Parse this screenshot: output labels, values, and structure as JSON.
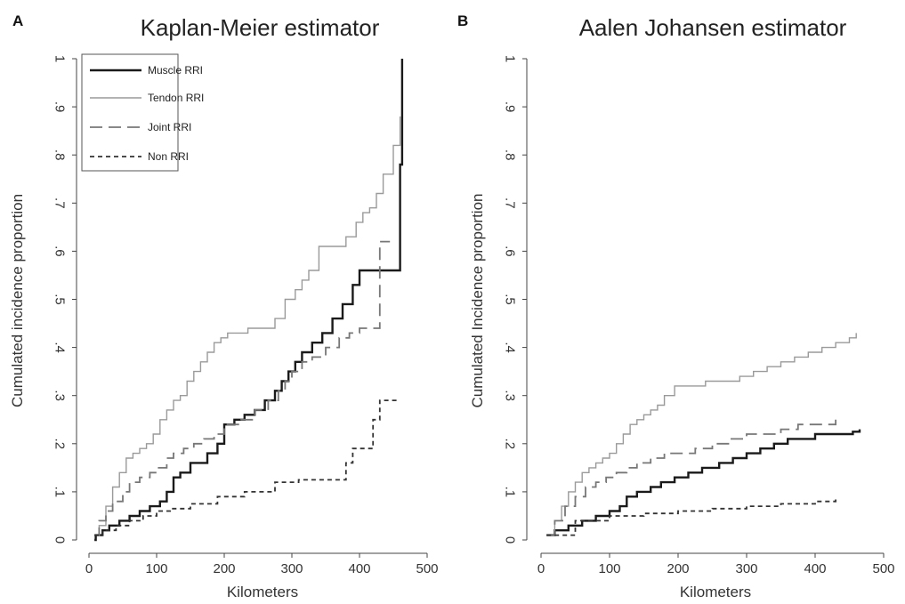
{
  "panels": [
    {
      "letter": "A",
      "title": "Kaplan-Meier estimator"
    },
    {
      "letter": "B",
      "title": "Aalen Johansen estimator"
    }
  ],
  "series_styles": [
    {
      "name": "Muscle RRI",
      "color": "#1a1a1a",
      "dash": "solid",
      "weight": "thick"
    },
    {
      "name": "Tendon RRI",
      "color": "#9a9a9a",
      "dash": "solid",
      "weight": "thin"
    },
    {
      "name": "Joint RRI",
      "color": "#777777",
      "dash": "long-dash",
      "weight": "medium"
    },
    {
      "name": "Non RRI",
      "color": "#333333",
      "dash": "short-dash",
      "weight": "medium"
    }
  ],
  "chart_data": [
    {
      "type": "line",
      "title": "Kaplan-Meier estimator",
      "xlabel": "Kilometers",
      "ylabel": "Cumulated incidence proportion",
      "xlim": [
        0,
        500
      ],
      "ylim": [
        0,
        1
      ],
      "xticks": [
        "0",
        "100",
        "200",
        "300",
        "400",
        "500"
      ],
      "yticks": [
        "0",
        ".1",
        ".2",
        ".3",
        ".4",
        ".5",
        ".6",
        ".7",
        ".8",
        ".9",
        "1"
      ],
      "legend": [
        "Muscle RRI",
        "Tendon RRI",
        "Joint RRI",
        "Non RRI"
      ],
      "legend_position": "top-left",
      "series": [
        {
          "name": "Muscle RRI",
          "x": [
            8,
            10,
            20,
            30,
            45,
            60,
            75,
            90,
            105,
            115,
            125,
            135,
            150,
            175,
            190,
            200,
            215,
            230,
            245,
            260,
            275,
            285,
            295,
            305,
            315,
            330,
            345,
            360,
            375,
            390,
            400,
            415,
            435,
            455,
            460,
            463
          ],
          "y": [
            0.0,
            0.01,
            0.02,
            0.03,
            0.04,
            0.05,
            0.06,
            0.07,
            0.08,
            0.1,
            0.13,
            0.14,
            0.16,
            0.18,
            0.2,
            0.24,
            0.25,
            0.26,
            0.27,
            0.29,
            0.31,
            0.33,
            0.35,
            0.37,
            0.39,
            0.41,
            0.43,
            0.46,
            0.49,
            0.53,
            0.56,
            0.56,
            0.56,
            0.56,
            0.78,
            1.0
          ]
        },
        {
          "name": "Tendon RRI",
          "x": [
            8,
            15,
            25,
            35,
            45,
            55,
            65,
            75,
            85,
            95,
            105,
            115,
            125,
            135,
            145,
            155,
            165,
            175,
            185,
            195,
            205,
            215,
            235,
            255,
            275,
            290,
            305,
            315,
            325,
            340,
            360,
            380,
            395,
            405,
            415,
            425,
            435,
            450,
            460
          ],
          "y": [
            0.01,
            0.03,
            0.07,
            0.11,
            0.14,
            0.17,
            0.18,
            0.19,
            0.2,
            0.22,
            0.25,
            0.27,
            0.29,
            0.3,
            0.33,
            0.35,
            0.37,
            0.39,
            0.41,
            0.42,
            0.43,
            0.43,
            0.44,
            0.44,
            0.46,
            0.5,
            0.52,
            0.54,
            0.56,
            0.61,
            0.61,
            0.63,
            0.66,
            0.68,
            0.69,
            0.72,
            0.76,
            0.82,
            0.88
          ]
        },
        {
          "name": "Joint RRI",
          "x": [
            8,
            15,
            25,
            35,
            50,
            60,
            75,
            90,
            100,
            115,
            125,
            140,
            155,
            170,
            185,
            200,
            225,
            245,
            265,
            280,
            290,
            300,
            315,
            330,
            350,
            370,
            385,
            400,
            420,
            430,
            445
          ],
          "y": [
            0.01,
            0.04,
            0.06,
            0.08,
            0.1,
            0.12,
            0.13,
            0.14,
            0.15,
            0.17,
            0.18,
            0.19,
            0.2,
            0.21,
            0.22,
            0.24,
            0.25,
            0.27,
            0.29,
            0.31,
            0.33,
            0.35,
            0.37,
            0.38,
            0.4,
            0.42,
            0.43,
            0.44,
            0.44,
            0.62,
            0.62
          ]
        },
        {
          "name": "Non RRI",
          "x": [
            8,
            20,
            40,
            60,
            80,
            100,
            120,
            150,
            190,
            230,
            275,
            310,
            340,
            370,
            380,
            390,
            410,
            420,
            430,
            460
          ],
          "y": [
            0.01,
            0.02,
            0.03,
            0.04,
            0.05,
            0.06,
            0.065,
            0.075,
            0.09,
            0.1,
            0.12,
            0.125,
            0.125,
            0.125,
            0.16,
            0.19,
            0.19,
            0.25,
            0.29,
            0.29
          ]
        }
      ]
    },
    {
      "type": "line",
      "title": "Aalen Johansen estimator",
      "xlabel": "Kilometers",
      "ylabel": "Cumulated Incidence proportion",
      "xlim": [
        0,
        500
      ],
      "ylim": [
        0,
        1
      ],
      "xticks": [
        "0",
        "100",
        "200",
        "300",
        "400",
        "500"
      ],
      "yticks": [
        "0",
        ".1",
        ".2",
        ".3",
        ".4",
        ".5",
        ".6",
        ".7",
        ".8",
        ".9",
        "1"
      ],
      "series": [
        {
          "name": "Muscle RRI",
          "x": [
            8,
            20,
            40,
            60,
            80,
            100,
            115,
            125,
            140,
            160,
            175,
            195,
            215,
            235,
            260,
            280,
            300,
            320,
            340,
            360,
            380,
            400,
            420,
            440,
            455,
            465
          ],
          "y": [
            0.01,
            0.02,
            0.03,
            0.04,
            0.05,
            0.06,
            0.07,
            0.09,
            0.1,
            0.11,
            0.12,
            0.13,
            0.14,
            0.15,
            0.16,
            0.17,
            0.18,
            0.19,
            0.2,
            0.21,
            0.21,
            0.22,
            0.22,
            0.22,
            0.225,
            0.23
          ]
        },
        {
          "name": "Tendon RRI",
          "x": [
            8,
            20,
            30,
            40,
            50,
            60,
            70,
            80,
            90,
            100,
            110,
            120,
            130,
            140,
            150,
            160,
            170,
            180,
            195,
            215,
            240,
            270,
            290,
            310,
            330,
            350,
            370,
            390,
            410,
            430,
            450,
            460
          ],
          "y": [
            0.01,
            0.04,
            0.07,
            0.1,
            0.12,
            0.14,
            0.15,
            0.16,
            0.17,
            0.18,
            0.2,
            0.22,
            0.24,
            0.25,
            0.26,
            0.27,
            0.28,
            0.3,
            0.32,
            0.32,
            0.33,
            0.33,
            0.34,
            0.35,
            0.36,
            0.37,
            0.38,
            0.39,
            0.4,
            0.41,
            0.42,
            0.43
          ]
        },
        {
          "name": "Joint RRI",
          "x": [
            8,
            20,
            35,
            50,
            65,
            80,
            95,
            110,
            125,
            140,
            160,
            180,
            200,
            225,
            250,
            275,
            300,
            325,
            350,
            375,
            400,
            430
          ],
          "y": [
            0.01,
            0.04,
            0.07,
            0.09,
            0.11,
            0.12,
            0.13,
            0.14,
            0.15,
            0.16,
            0.17,
            0.18,
            0.18,
            0.19,
            0.2,
            0.21,
            0.22,
            0.22,
            0.23,
            0.24,
            0.24,
            0.25
          ]
        },
        {
          "name": "Non RRI",
          "x": [
            8,
            50,
            100,
            150,
            200,
            250,
            300,
            350,
            400,
            430
          ],
          "y": [
            0.01,
            0.04,
            0.05,
            0.055,
            0.06,
            0.065,
            0.07,
            0.075,
            0.08,
            0.085
          ]
        }
      ]
    }
  ]
}
